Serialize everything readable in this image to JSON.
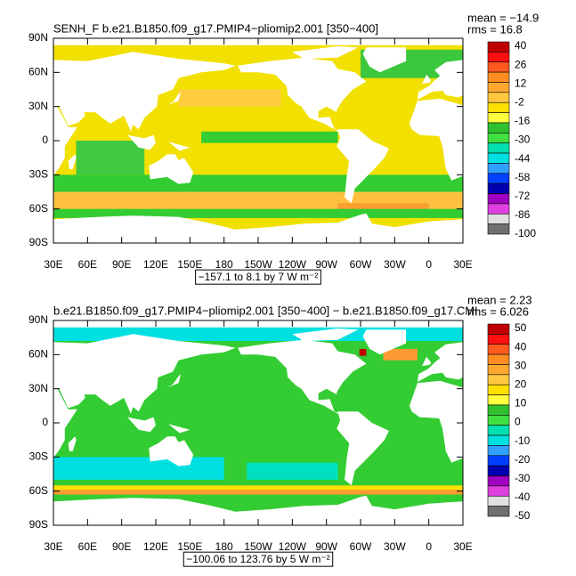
{
  "panels": [
    {
      "title": "SENH_F b.e21.B1850.f09_g17.PMIP4−pliomip2.001 [350−400]",
      "mean": "mean = −14.9",
      "rms": "rms = 16.8",
      "lat_labels": [
        "90N",
        "60N",
        "30N",
        "0",
        "30S",
        "60S",
        "90S"
      ],
      "lon_labels": [
        "30E",
        "60E",
        "90E",
        "120E",
        "150E",
        "180",
        "150W",
        "120W",
        "90W",
        "60W",
        "30W",
        "0",
        "30E"
      ],
      "range_label": "−157.1 to 8.1 by 7  W m⁻²",
      "colorbar": {
        "labels": [
          40,
          26,
          12,
          -2,
          -16,
          -30,
          -44,
          -58,
          -72,
          -86,
          -100
        ],
        "colors": [
          "#c00000",
          "#ff1010",
          "#ff5a20",
          "#ff8c20",
          "#ffa830",
          "#ffc840",
          "#ffe000",
          "#ffff40",
          "#30c030",
          "#40e040",
          "#00e0b0",
          "#00e0e0",
          "#30a0ff",
          "#0040ff",
          "#0000b0",
          "#a000c0",
          "#e040e0",
          "#e0e0e0",
          "#707070"
        ]
      }
    },
    {
      "title": "b.e21.B1850.f09_g17.PMIP4−pliomip2.001 [350−400] − b.e21.B1850.f09_g17.CMI",
      "mean": "mean = 2.23",
      "rms": "rms = 6.026",
      "lat_labels": [
        "90N",
        "60N",
        "30N",
        "0",
        "30S",
        "60S",
        "90S"
      ],
      "lon_labels": [
        "30E",
        "60E",
        "90E",
        "120E",
        "150E",
        "180",
        "150W",
        "120W",
        "90W",
        "60W",
        "30W",
        "0",
        "30E"
      ],
      "range_label": "−100.06 to 123.76 by 5  W m⁻²",
      "colorbar": {
        "labels": [
          50,
          40,
          30,
          20,
          10,
          0,
          -10,
          -20,
          -30,
          -40,
          -50
        ],
        "colors": [
          "#c00000",
          "#ff1010",
          "#ff5a20",
          "#ff8c20",
          "#ffa830",
          "#ffc840",
          "#ffe000",
          "#ffff40",
          "#30c030",
          "#40e040",
          "#00e0b0",
          "#00e0e0",
          "#30a0ff",
          "#0040ff",
          "#0000b0",
          "#a000c0",
          "#e040e0",
          "#e0e0e0",
          "#707070"
        ]
      }
    }
  ]
}
